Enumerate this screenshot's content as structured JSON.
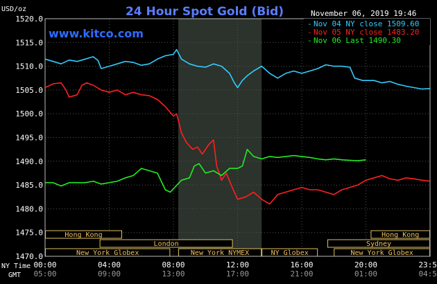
{
  "chart_data": {
    "type": "line",
    "title": "24 Hour Spot Gold (Bid)",
    "watermark": "www.kitco.com",
    "date_label": "November 06, 2019 19:46",
    "unit_label": "USD/oz",
    "ylim": [
      1470,
      1520
    ],
    "y_ticks": [
      "1520.0",
      "1515.0",
      "1510.0",
      "1505.0",
      "1500.0",
      "1495.0",
      "1490.0",
      "1485.0",
      "1480.0",
      "1475.0",
      "1470.0"
    ],
    "xlim": [
      0,
      24
    ],
    "x_ticks": [
      {
        "h": 0,
        "ny": "00:00",
        "gmt": "05:00"
      },
      {
        "h": 4,
        "ny": "04:00",
        "gmt": "09:00"
      },
      {
        "h": 8,
        "ny": "08:00",
        "gmt": "13:00"
      },
      {
        "h": 12,
        "ny": "12:00",
        "gmt": "17:00"
      },
      {
        "h": 16,
        "ny": "16:00",
        "gmt": "21:00"
      },
      {
        "h": 20,
        "ny": "20:00",
        "gmt": "01:00"
      },
      {
        "h": 24,
        "ny": "23:59",
        "gmt": "04:59"
      }
    ],
    "axis_row_labels": {
      "ny": "NY Time",
      "gmt": "GMT"
    },
    "highlight_band_hours": [
      8.3,
      13.5
    ],
    "sessions": [
      {
        "label": "Hong Kong",
        "row": 0,
        "start": 0,
        "end": 4.8
      },
      {
        "label": "Hong Kong",
        "row": 0,
        "start": 20.3,
        "end": 24
      },
      {
        "label": "London",
        "row": 1,
        "start": 3.4,
        "end": 11.7
      },
      {
        "label": "Sydney",
        "row": 1,
        "start": 17.6,
        "end": 24
      },
      {
        "label": "New York Globex",
        "row": 2,
        "start": 0,
        "end": 7.8
      },
      {
        "label": "New York NYMEX",
        "row": 2,
        "start": 8.3,
        "end": 13.5
      },
      {
        "label": "NY Globex",
        "row": 2,
        "start": 13.5,
        "end": 17.0
      },
      {
        "label": "New York Globex",
        "row": 2,
        "start": 18.0,
        "end": 24
      }
    ],
    "series": [
      {
        "name": "Nov 04 NY close 1509.60",
        "color": "#33ccff",
        "points": [
          [
            0,
            1511.5
          ],
          [
            0.5,
            1511
          ],
          [
            1,
            1510.5
          ],
          [
            1.5,
            1511.3
          ],
          [
            2,
            1511
          ],
          [
            2.5,
            1511.5
          ],
          [
            3,
            1512
          ],
          [
            3.3,
            1511.2
          ],
          [
            3.5,
            1509.5
          ],
          [
            4,
            1510
          ],
          [
            4.5,
            1510.5
          ],
          [
            5,
            1511
          ],
          [
            5.5,
            1510.8
          ],
          [
            6,
            1510.2
          ],
          [
            6.5,
            1510.5
          ],
          [
            7,
            1511.5
          ],
          [
            7.5,
            1512.2
          ],
          [
            8,
            1512.5
          ],
          [
            8.2,
            1513.5
          ],
          [
            8.5,
            1511.5
          ],
          [
            9,
            1510.5
          ],
          [
            9.5,
            1510
          ],
          [
            10,
            1509.8
          ],
          [
            10.5,
            1510.5
          ],
          [
            11,
            1510
          ],
          [
            11.5,
            1508.5
          ],
          [
            11.8,
            1506.5
          ],
          [
            12,
            1505.5
          ],
          [
            12.3,
            1507
          ],
          [
            12.6,
            1508
          ],
          [
            13,
            1509
          ],
          [
            13.5,
            1510
          ],
          [
            14,
            1508.5
          ],
          [
            14.5,
            1507.5
          ],
          [
            15,
            1508.5
          ],
          [
            15.5,
            1509
          ],
          [
            16,
            1508.5
          ],
          [
            16.5,
            1509
          ],
          [
            17,
            1509.5
          ],
          [
            17.5,
            1510.3
          ],
          [
            18,
            1510
          ],
          [
            18.5,
            1510
          ],
          [
            19,
            1509.8
          ],
          [
            19.3,
            1507.5
          ],
          [
            19.8,
            1507
          ],
          [
            20.5,
            1507
          ],
          [
            21,
            1506.5
          ],
          [
            21.5,
            1506.8
          ],
          [
            22,
            1506.2
          ],
          [
            22.5,
            1505.8
          ],
          [
            23,
            1505.5
          ],
          [
            23.5,
            1505.2
          ],
          [
            24,
            1505.3
          ]
        ]
      },
      {
        "name": "Nov 05 NY close 1483.20",
        "color": "#ff2020",
        "points": [
          [
            0,
            1505.5
          ],
          [
            0.5,
            1506.3
          ],
          [
            1,
            1506.5
          ],
          [
            1.3,
            1505
          ],
          [
            1.5,
            1503.5
          ],
          [
            2,
            1504
          ],
          [
            2.3,
            1506
          ],
          [
            2.6,
            1506.5
          ],
          [
            3,
            1506
          ],
          [
            3.5,
            1505
          ],
          [
            4,
            1504.5
          ],
          [
            4.5,
            1505
          ],
          [
            5,
            1504
          ],
          [
            5.5,
            1504.5
          ],
          [
            6,
            1504
          ],
          [
            6.5,
            1503.8
          ],
          [
            7,
            1503
          ],
          [
            7.5,
            1501.5
          ],
          [
            8,
            1499.5
          ],
          [
            8.2,
            1500
          ],
          [
            8.5,
            1496
          ],
          [
            8.8,
            1494
          ],
          [
            9.2,
            1492.5
          ],
          [
            9.5,
            1493
          ],
          [
            9.8,
            1491.5
          ],
          [
            10.2,
            1493.5
          ],
          [
            10.5,
            1494.5
          ],
          [
            10.7,
            1489
          ],
          [
            11,
            1486
          ],
          [
            11.3,
            1487.5
          ],
          [
            11.6,
            1485
          ],
          [
            12,
            1482
          ],
          [
            12.5,
            1482.5
          ],
          [
            13,
            1483.5
          ],
          [
            13.5,
            1482
          ],
          [
            14,
            1481
          ],
          [
            14.5,
            1483
          ],
          [
            15,
            1483.5
          ],
          [
            15.5,
            1484
          ],
          [
            16,
            1484.5
          ],
          [
            16.5,
            1484
          ],
          [
            17,
            1484
          ],
          [
            17.5,
            1483.5
          ],
          [
            18,
            1483
          ],
          [
            18.5,
            1484
          ],
          [
            19,
            1484.5
          ],
          [
            19.5,
            1485
          ],
          [
            20,
            1486
          ],
          [
            20.5,
            1486.5
          ],
          [
            21,
            1487
          ],
          [
            21.5,
            1486.3
          ],
          [
            22,
            1486
          ],
          [
            22.5,
            1486.5
          ],
          [
            23,
            1486.3
          ],
          [
            23.5,
            1486
          ],
          [
            24,
            1485.8
          ]
        ]
      },
      {
        "name": "Nov 06 Last 1490.30",
        "color": "#22ee22",
        "points": [
          [
            0,
            1485.5
          ],
          [
            0.5,
            1485.5
          ],
          [
            1,
            1484.8
          ],
          [
            1.5,
            1485.5
          ],
          [
            2,
            1485.5
          ],
          [
            2.5,
            1485.5
          ],
          [
            3,
            1485.8
          ],
          [
            3.5,
            1485.2
          ],
          [
            4,
            1485.5
          ],
          [
            4.5,
            1485.8
          ],
          [
            5,
            1486.5
          ],
          [
            5.5,
            1487
          ],
          [
            6,
            1488.5
          ],
          [
            6.5,
            1488
          ],
          [
            7,
            1487.5
          ],
          [
            7.5,
            1484
          ],
          [
            7.8,
            1483.5
          ],
          [
            8,
            1484.2
          ],
          [
            8.5,
            1486
          ],
          [
            9,
            1486.5
          ],
          [
            9.3,
            1489
          ],
          [
            9.6,
            1489.5
          ],
          [
            10,
            1487.5
          ],
          [
            10.5,
            1488
          ],
          [
            11,
            1487
          ],
          [
            11.5,
            1488.5
          ],
          [
            12,
            1488.5
          ],
          [
            12.3,
            1489
          ],
          [
            12.6,
            1492.5
          ],
          [
            13,
            1491
          ],
          [
            13.5,
            1490.5
          ],
          [
            14,
            1491
          ],
          [
            14.5,
            1490.8
          ],
          [
            15,
            1491
          ],
          [
            15.5,
            1491.2
          ],
          [
            16,
            1491
          ],
          [
            16.5,
            1490.8
          ],
          [
            17,
            1490.5
          ],
          [
            17.5,
            1490.3
          ],
          [
            18,
            1490.5
          ],
          [
            18.5,
            1490.3
          ],
          [
            19,
            1490.2
          ],
          [
            19.5,
            1490.1
          ],
          [
            20,
            1490.3
          ]
        ]
      }
    ]
  }
}
